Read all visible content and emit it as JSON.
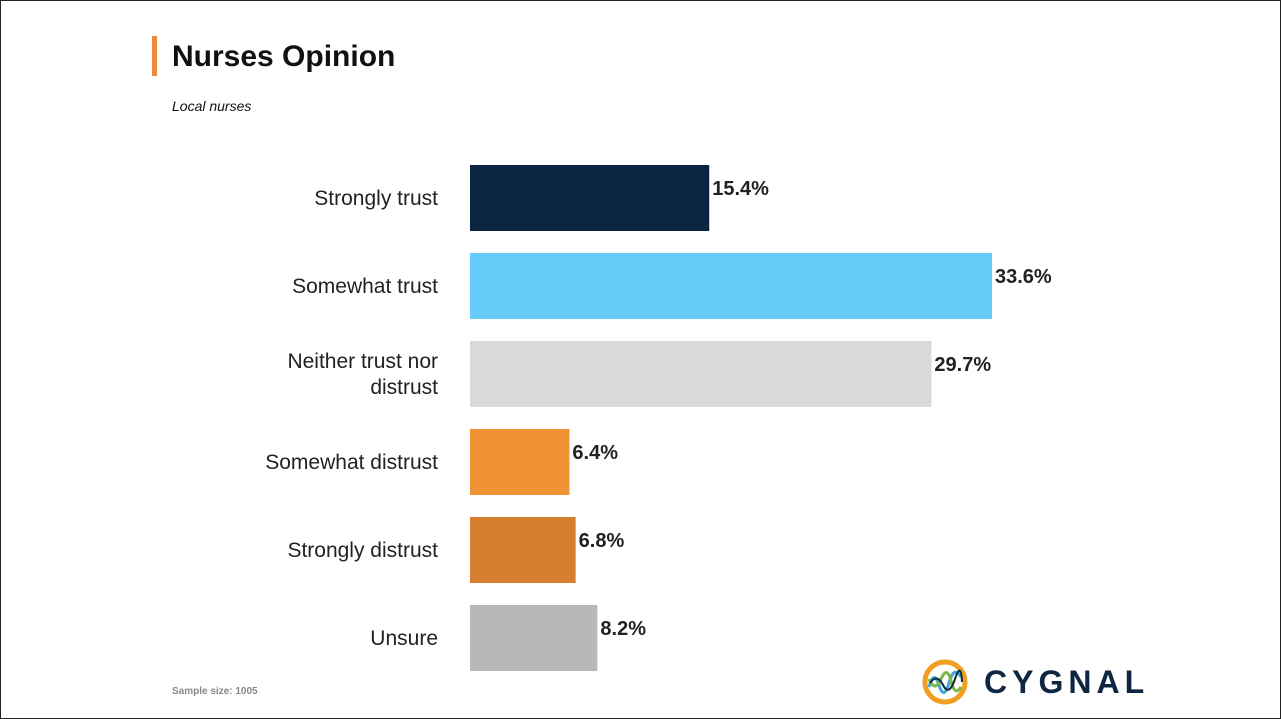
{
  "title": "Nurses Opinion",
  "subtitle": "Local nurses",
  "footer": {
    "sample_size": "Sample size: 1005"
  },
  "logo": {
    "text": "CYGNAL",
    "icon": "cygnal-logo-icon"
  },
  "chart_data": {
    "type": "bar",
    "orientation": "horizontal",
    "categories": [
      "Strongly trust",
      "Somewhat trust",
      "Neither trust nor distrust",
      "Somewhat distrust",
      "Strongly distrust",
      "Unsure"
    ],
    "values": [
      15.4,
      33.6,
      29.7,
      6.4,
      6.8,
      8.2
    ],
    "value_labels": [
      "15.4%",
      "33.6%",
      "29.7%",
      "6.4%",
      "6.8%",
      "8.2%"
    ],
    "colors": [
      "#0c2641",
      "#66ccfa",
      "#d9d9d9",
      "#ef9336",
      "#d77f2f",
      "#b8b8b8"
    ],
    "xlim": [
      0,
      35
    ],
    "grid": false,
    "legend": "none",
    "title": "",
    "xlabel": "",
    "ylabel": ""
  }
}
